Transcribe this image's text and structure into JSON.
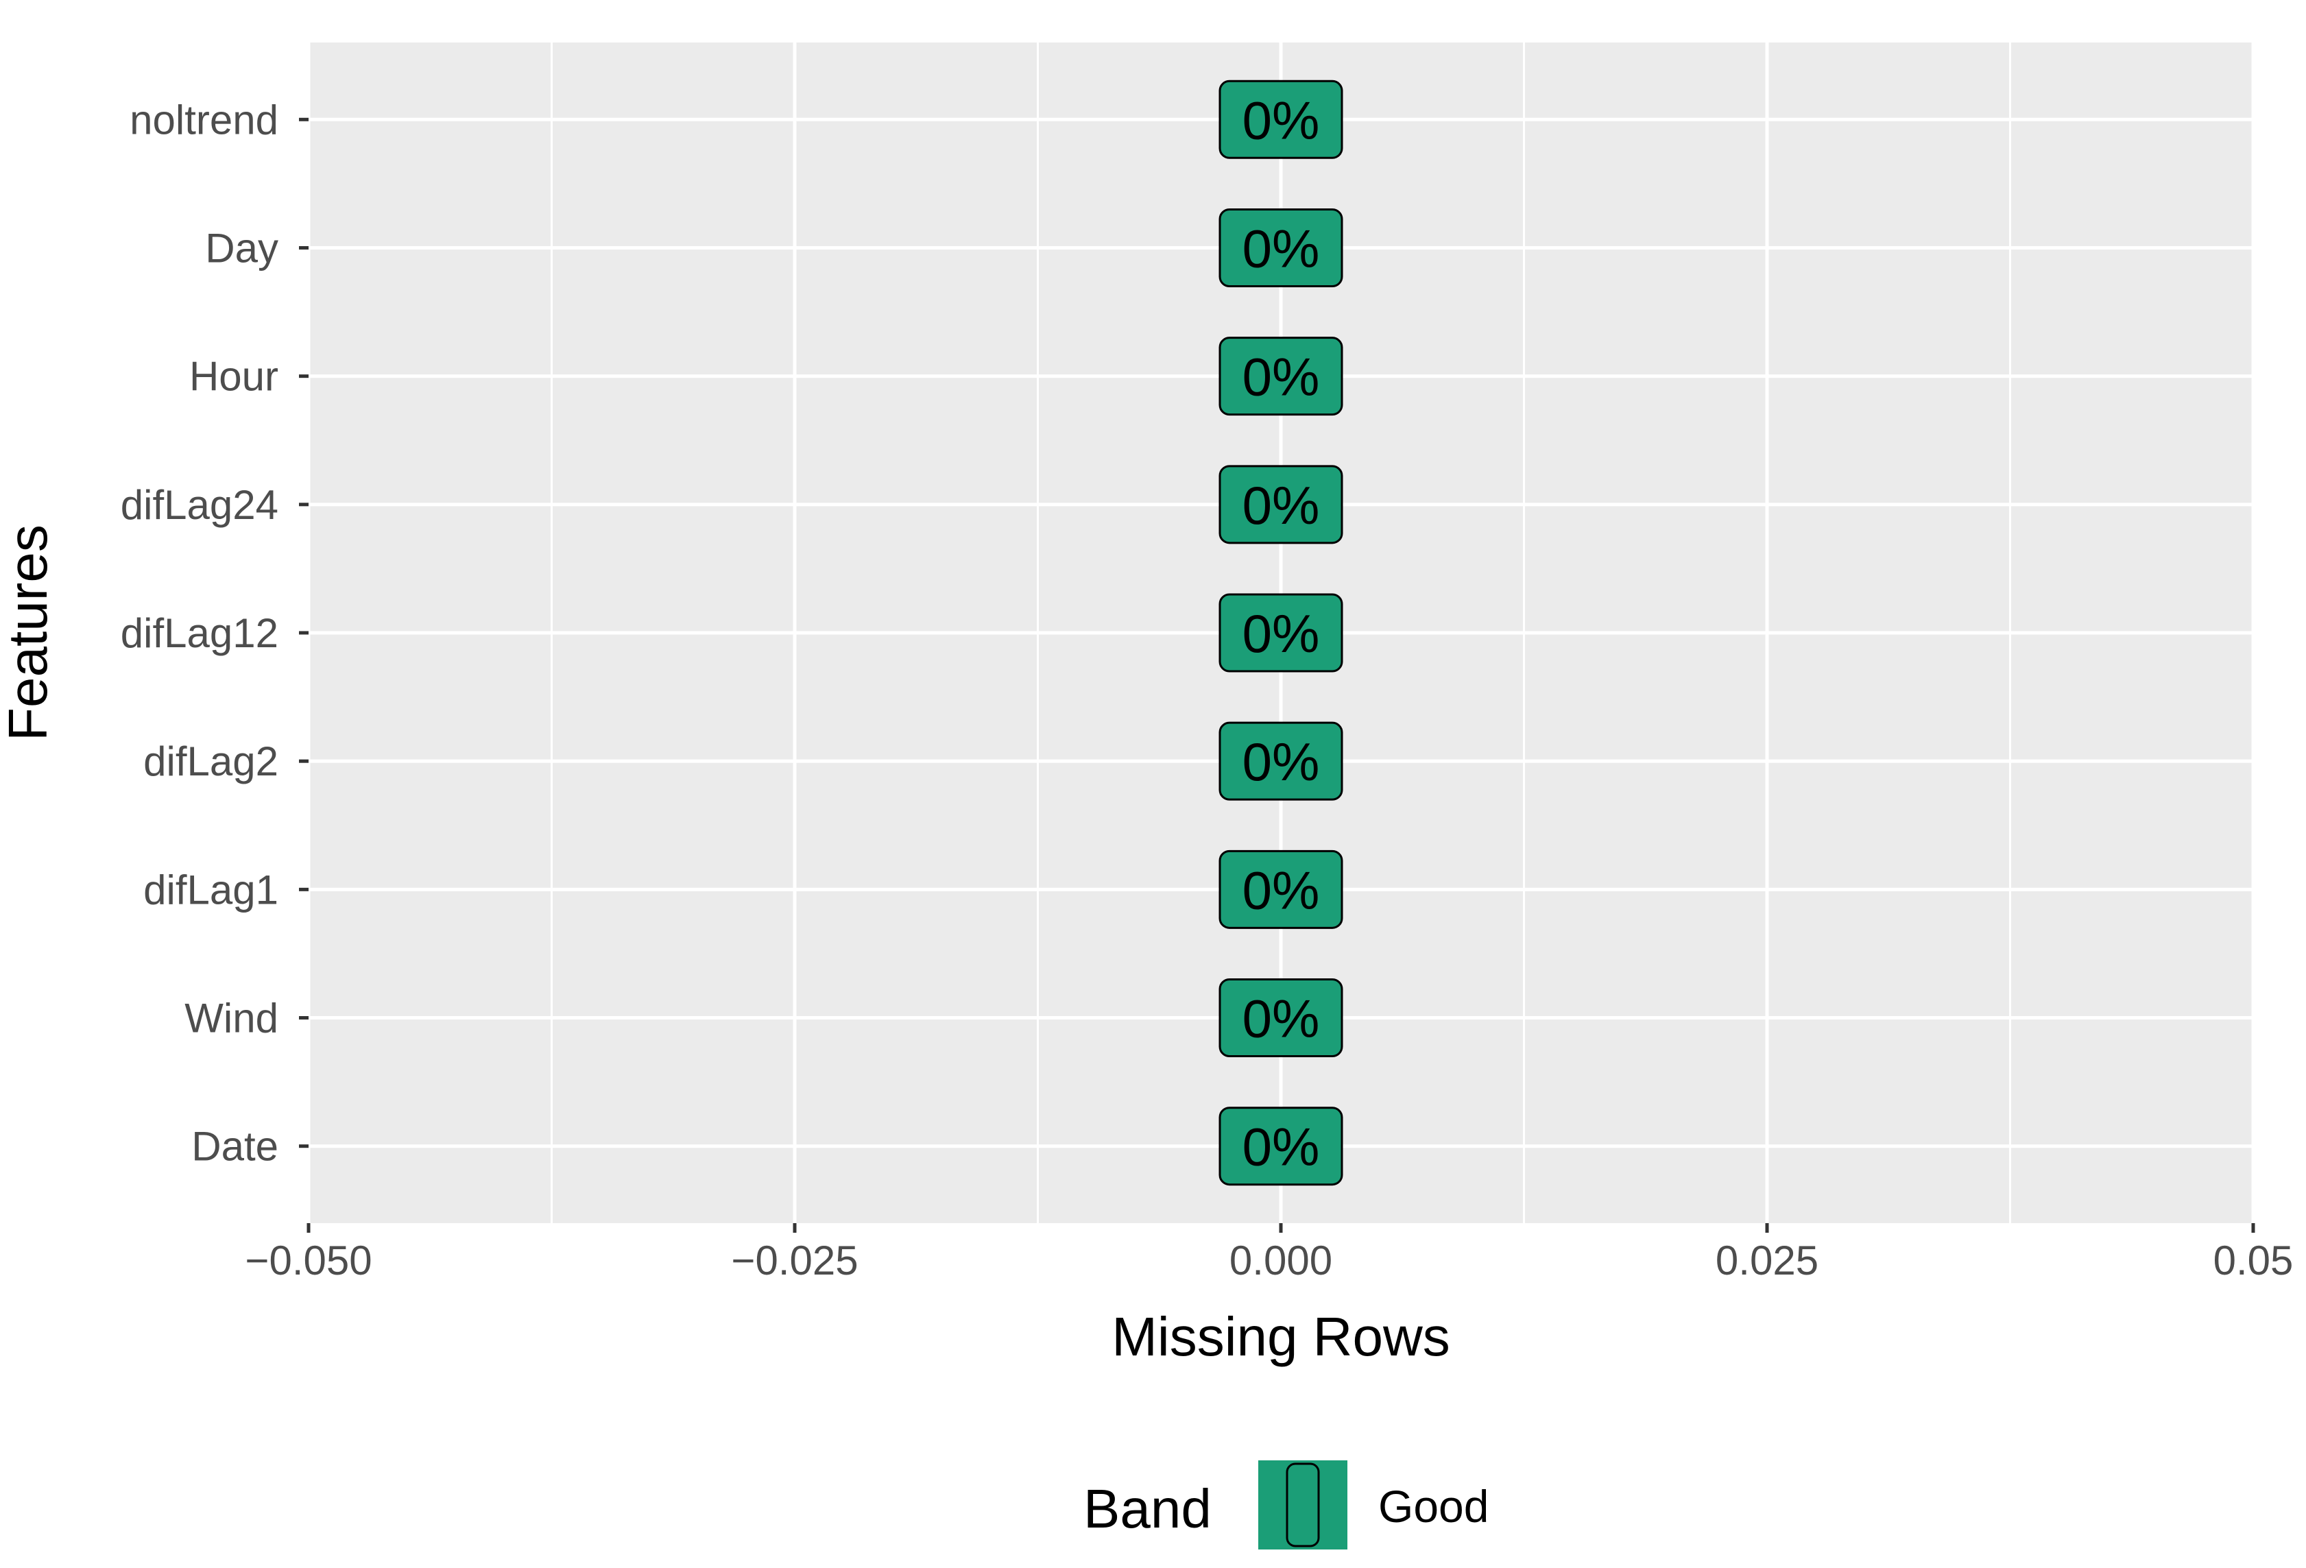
{
  "chart_data": {
    "type": "bar",
    "orientation": "horizontal",
    "categories": [
      "noltrend",
      "Day",
      "Hour",
      "difLag24",
      "difLag12",
      "difLag2",
      "difLag1",
      "Wind",
      "Date"
    ],
    "values": [
      0,
      0,
      0,
      0,
      0,
      0,
      0,
      0,
      0
    ],
    "bar_labels": [
      "0%",
      "0%",
      "0%",
      "0%",
      "0%",
      "0%",
      "0%",
      "0%",
      "0%"
    ],
    "bands": [
      "Good",
      "Good",
      "Good",
      "Good",
      "Good",
      "Good",
      "Good",
      "Good",
      "Good"
    ],
    "xlabel": "Missing Rows",
    "ylabel": "Features",
    "xlim": [
      -0.05,
      0.05
    ],
    "x_ticks": [
      -0.05,
      -0.025,
      0,
      0.025,
      0.05
    ],
    "x_tick_labels": [
      "−0.050",
      "−0.025",
      "0.000",
      "0.025",
      "0.05"
    ],
    "grid": true,
    "legend": {
      "title": "Band",
      "position": "bottom",
      "entries": [
        {
          "label": "Good",
          "color": "#1b9e77"
        }
      ]
    },
    "colors": {
      "panel_background": "#ebebeb",
      "grid_line": "#ffffff",
      "bar_fill": "#1b9e77",
      "label_border": "#000000",
      "tick_text": "#4d4d4d",
      "tick_mark": "#333333"
    }
  }
}
